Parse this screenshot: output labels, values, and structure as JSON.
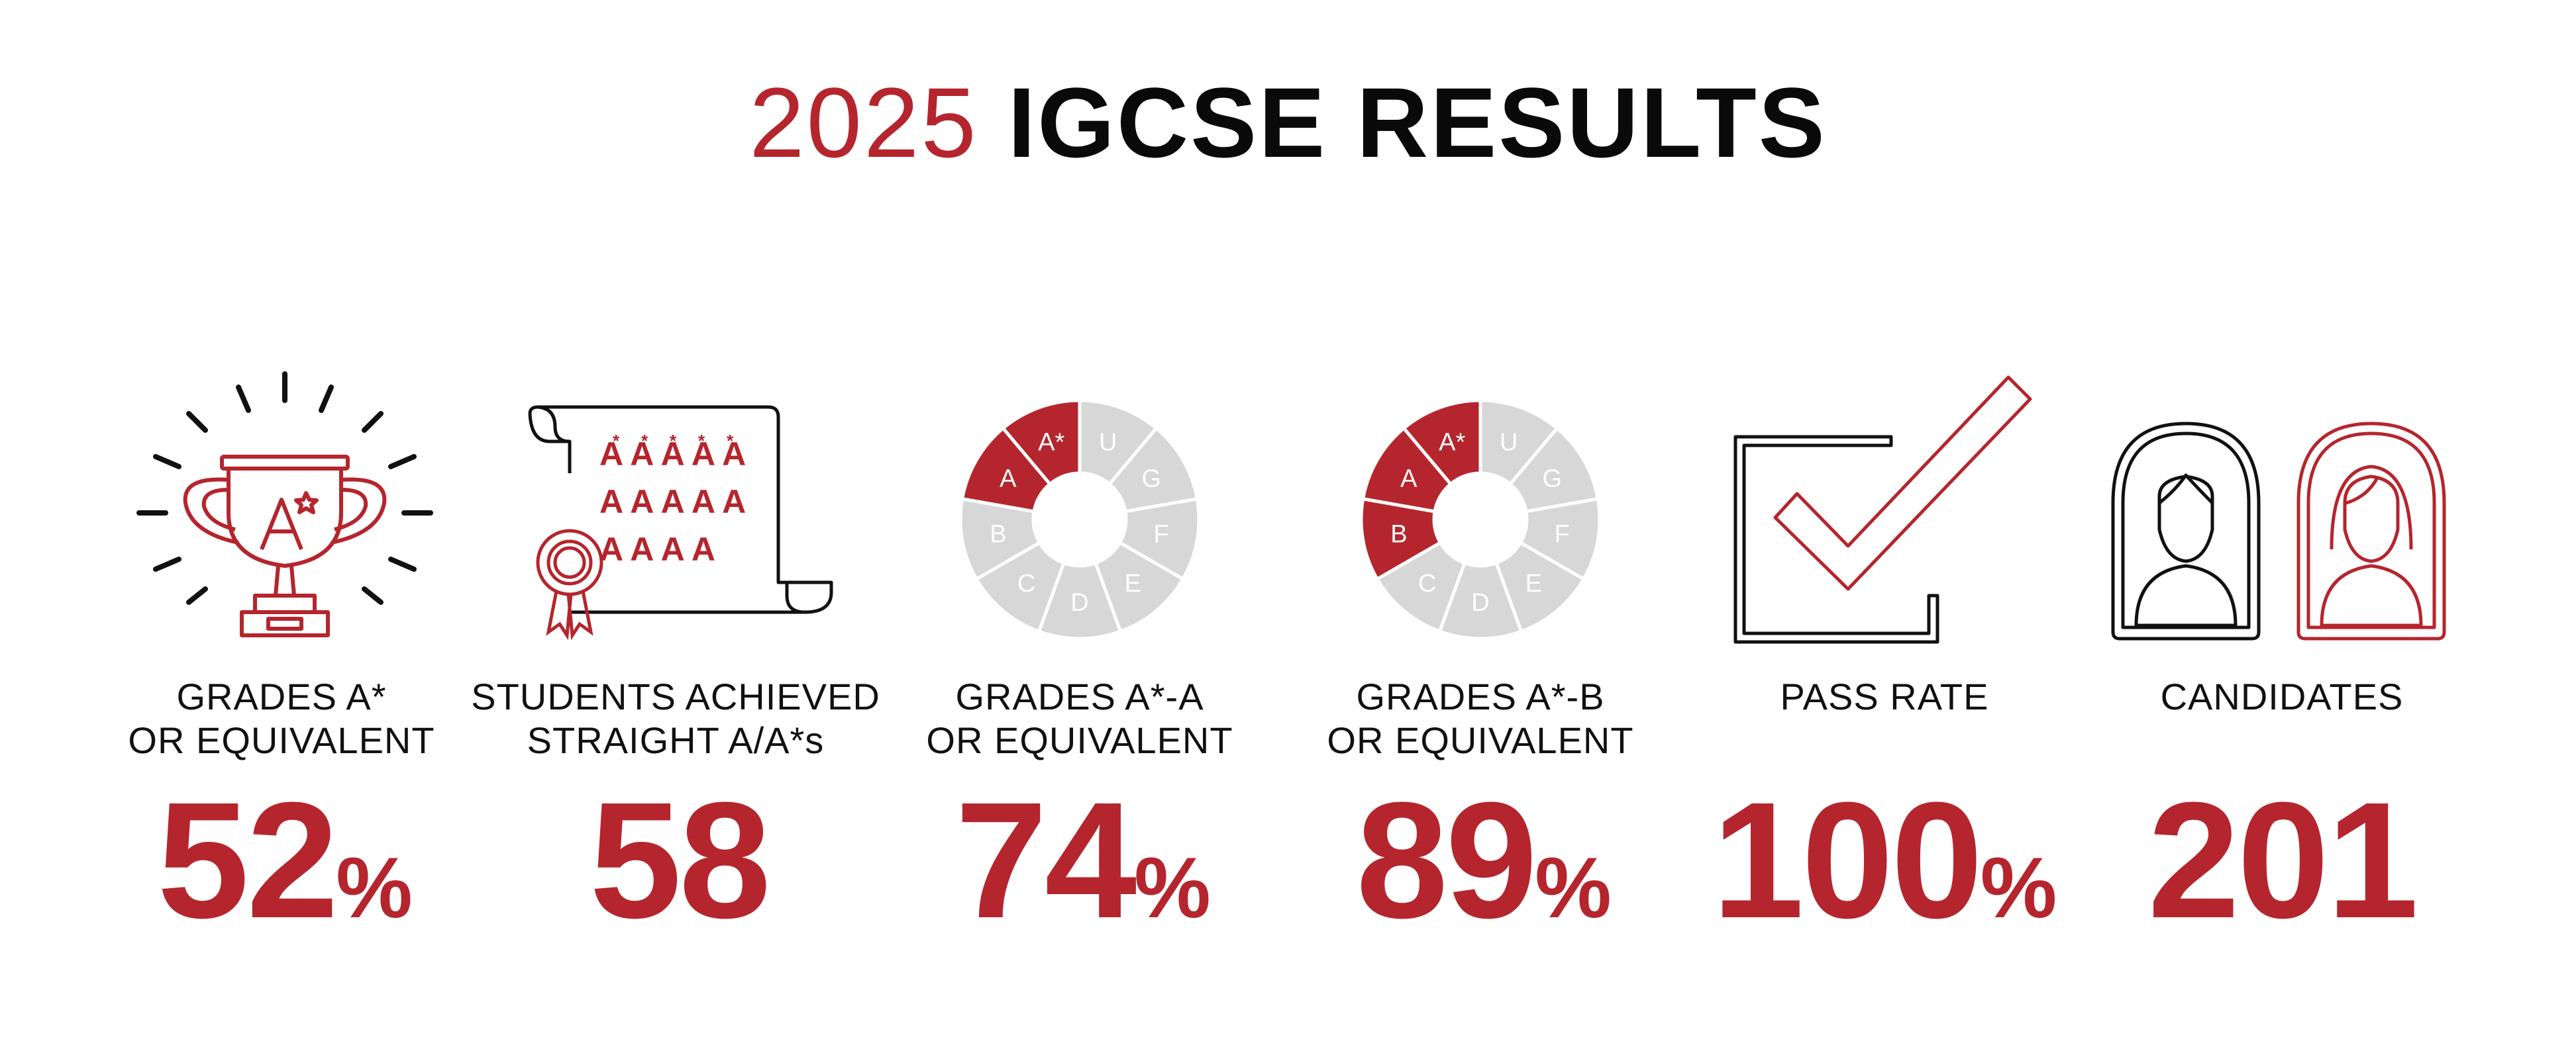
{
  "title": {
    "year": "2025",
    "main": "IGCSE RESULTS"
  },
  "colors": {
    "accent": "#b5252d",
    "muted": "#d7d7d7",
    "ink": "#111111"
  },
  "stats": [
    {
      "icon": "trophy-icon",
      "label_lines": [
        "GRADES A*",
        "OR EQUIVALENT"
      ],
      "value": "52",
      "unit": "%"
    },
    {
      "icon": "certificate-scroll-icon",
      "label_lines": [
        "STUDENTS ACHIEVED",
        "STRAIGHT A/A*s"
      ],
      "value": "58",
      "unit": ""
    },
    {
      "icon": "grade-wheel-icon",
      "label_lines": [
        "GRADES A*-A",
        "OR EQUIVALENT"
      ],
      "value": "74",
      "unit": "%"
    },
    {
      "icon": "grade-wheel-icon",
      "label_lines": [
        "GRADES A*-B",
        "OR EQUIVALENT"
      ],
      "value": "89",
      "unit": "%"
    },
    {
      "icon": "checkbox-tick-icon",
      "label_lines": [
        "PASS RATE"
      ],
      "value": "100",
      "unit": "%"
    },
    {
      "icon": "people-icon",
      "label_lines": [
        "CANDIDATES"
      ],
      "value": "201",
      "unit": ""
    }
  ],
  "wheel": {
    "segments": [
      "A*",
      "U",
      "G",
      "F",
      "E",
      "D",
      "C",
      "B",
      "A"
    ]
  },
  "scroll_grades": {
    "rows": [
      [
        "A*",
        "A*",
        "A*",
        "A*",
        "A*"
      ],
      [
        "A",
        "A",
        "A",
        "A",
        "A"
      ],
      [
        "A",
        "A",
        "A",
        "A"
      ]
    ]
  }
}
